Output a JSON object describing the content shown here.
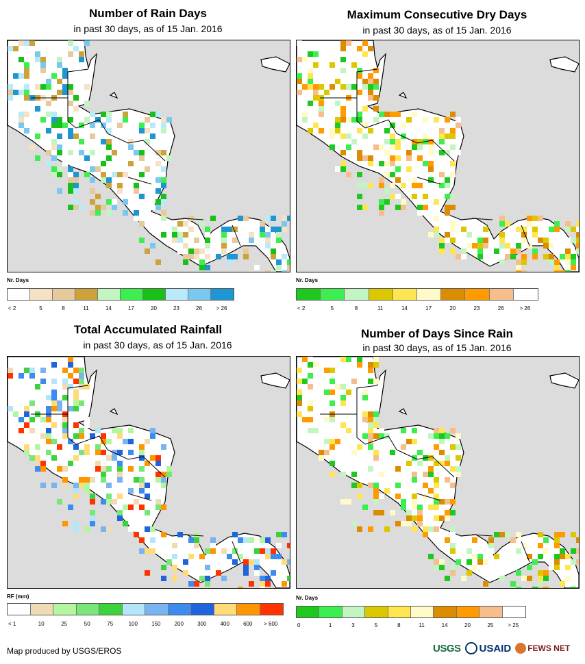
{
  "panels": [
    {
      "id": "rain_days",
      "title": "Number of Rain Days",
      "subtitle": "in past 30 days, as of 15 Jan. 2016",
      "legend": {
        "name": "Nr. Days",
        "colors": [
          "#ffffff",
          "#f5e1c3",
          "#e6c99c",
          "#cda23a",
          "#c2f5c2",
          "#3cee4f",
          "#18c018",
          "#b8eafa",
          "#78c8f0",
          "#1e96d2"
        ],
        "ticks": [
          "< 2",
          "5",
          "8",
          "11",
          "14",
          "17",
          "20",
          "23",
          "26",
          "> 26"
        ]
      }
    },
    {
      "id": "max_dry",
      "title": "Maximum Consecutive Dry Days",
      "subtitle": "in past 30 days, as of 15 Jan. 2016",
      "legend": {
        "name": "Nr. Days",
        "colors": [
          "#1ec81e",
          "#3cee4f",
          "#c2f5c2",
          "#dcc800",
          "#ffe650",
          "#fffac8",
          "#dc8c00",
          "#ff9b00",
          "#f5be8c",
          "#ffffff"
        ],
        "ticks": [
          "< 2",
          "5",
          "8",
          "11",
          "14",
          "17",
          "20",
          "23",
          "26",
          "> 26"
        ]
      }
    },
    {
      "id": "total_rf",
      "title": "Total Accumulated Rainfall",
      "subtitle": "in past 30 days, as of 15 Jan. 2016",
      "legend": {
        "name": "RF (mm)",
        "colors": [
          "#ffffff",
          "#f0dcb4",
          "#b4f5a0",
          "#78e678",
          "#3cd23c",
          "#b4e6fa",
          "#78b4f0",
          "#3c8cf0",
          "#1e64dc",
          "#ffdc78",
          "#ff9600",
          "#ff3200"
        ],
        "ticks": [
          "< 1",
          "10",
          "25",
          "50",
          "75",
          "100",
          "150",
          "200",
          "300",
          "400",
          "600",
          "> 600"
        ]
      }
    },
    {
      "id": "days_since",
      "title": "Number of Days Since Rain",
      "subtitle": "in past 30 days, as of 15 Jan. 2016",
      "legend": {
        "name": "Nr. Days",
        "colors": [
          "#1ec81e",
          "#3cee4f",
          "#c2f5c2",
          "#dcc800",
          "#ffe650",
          "#fffac8",
          "#dc8c00",
          "#ff9b00",
          "#f5be8c",
          "#ffffff"
        ],
        "ticks": [
          "0",
          "1",
          "3",
          "5",
          "8",
          "11",
          "14",
          "20",
          "25",
          "> 25"
        ]
      }
    }
  ],
  "credit": "Map produced by USGS/EROS",
  "logos": {
    "usgs": "USGS",
    "usaid": "USAID",
    "fews": "FEWS NET"
  }
}
